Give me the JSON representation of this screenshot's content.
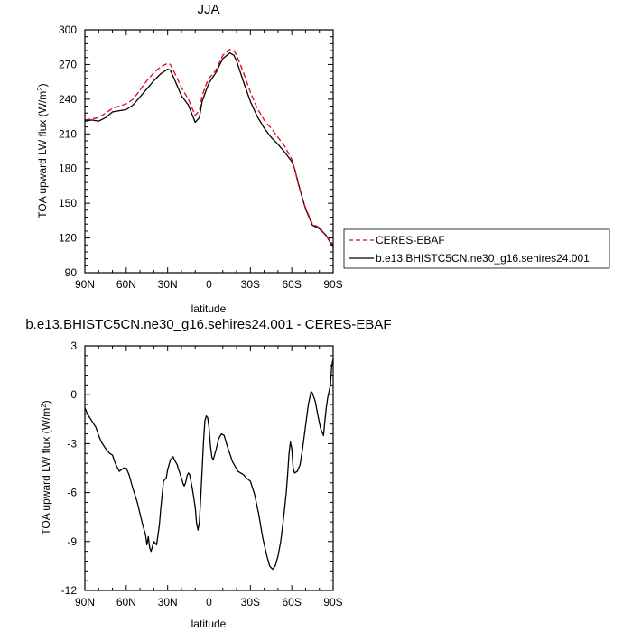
{
  "chart_data": [
    {
      "type": "line",
      "title": "JJA",
      "xlabel": "latitude",
      "ylabel": "TOA upward LW flux (W/m",
      "ylabel_sup": "2",
      "ylabel_end": ")",
      "xlim": [
        90,
        -90
      ],
      "ylim": [
        90,
        300
      ],
      "x_ticks": [
        90,
        60,
        30,
        0,
        -30,
        -60,
        -90
      ],
      "x_tick_labels": [
        "90N",
        "60N",
        "30N",
        "0",
        "30S",
        "60S",
        "90S"
      ],
      "y_ticks": [
        90,
        120,
        150,
        180,
        210,
        240,
        270,
        300
      ],
      "y_tick_labels": [
        "90",
        "120",
        "150",
        "180",
        "210",
        "240",
        "270",
        "300"
      ],
      "grid": false,
      "legend_position": "right",
      "series": [
        {
          "name": "CERES-EBAF",
          "color": "#e8001c",
          "dash": "dashed",
          "x": [
            90,
            85,
            80,
            75,
            70,
            65,
            60,
            55,
            50,
            45,
            40,
            35,
            30,
            28,
            25,
            20,
            15,
            10,
            7,
            5,
            2,
            0,
            -5,
            -10,
            -15,
            -18,
            -20,
            -25,
            -30,
            -35,
            -40,
            -45,
            -50,
            -55,
            -60,
            -62,
            -65,
            -70,
            -75,
            -80,
            -85,
            -90
          ],
          "values": [
            222,
            223,
            224,
            228,
            232,
            234,
            236,
            240,
            248,
            256,
            263,
            268,
            271,
            270,
            263,
            250,
            240,
            226,
            230,
            243,
            253,
            258,
            265,
            278,
            283,
            282,
            278,
            263,
            246,
            232,
            222,
            215,
            207,
            199,
            188,
            180,
            165,
            146,
            132,
            129,
            122,
            114
          ]
        },
        {
          "name": "b.e13.BHISTC5CN.ne30_g16.sehires24.001",
          "color": "#000000",
          "dash": "solid",
          "x": [
            90,
            85,
            80,
            75,
            70,
            65,
            60,
            55,
            50,
            45,
            40,
            35,
            30,
            28,
            25,
            20,
            15,
            10,
            7,
            5,
            2,
            0,
            -5,
            -10,
            -15,
            -18,
            -20,
            -25,
            -30,
            -35,
            -40,
            -45,
            -50,
            -55,
            -60,
            -62,
            -65,
            -70,
            -75,
            -80,
            -85,
            -90
          ],
          "values": [
            221,
            222,
            221,
            224,
            229,
            230,
            231,
            235,
            242,
            249,
            256,
            262,
            266,
            265,
            257,
            243,
            235,
            220,
            224,
            238,
            248,
            254,
            263,
            275,
            280,
            278,
            273,
            255,
            238,
            225,
            215,
            207,
            201,
            194,
            186,
            180,
            166,
            145,
            131,
            128,
            122,
            112
          ]
        }
      ]
    },
    {
      "type": "line",
      "title": "b.e13.BHISTC5CN.ne30_g16.sehires24.001 - CERES-EBAF",
      "xlabel": "latitude",
      "ylabel": "TOA upward LW flux (W/m",
      "ylabel_sup": "2",
      "ylabel_end": ")",
      "xlim": [
        90,
        -90
      ],
      "ylim": [
        -12,
        3
      ],
      "x_ticks": [
        90,
        60,
        30,
        0,
        -30,
        -60,
        -90
      ],
      "x_tick_labels": [
        "90N",
        "60N",
        "30N",
        "0",
        "30S",
        "60S",
        "90S"
      ],
      "y_ticks": [
        -12,
        -9,
        -6,
        -3,
        0,
        3
      ],
      "y_tick_labels": [
        "-12",
        "-9",
        "-6",
        "-3",
        "0",
        "3"
      ],
      "grid": false,
      "series": [
        {
          "color": "#000000",
          "dash": "solid",
          "x": [
            90,
            88,
            85,
            82,
            80,
            78,
            75,
            72,
            70,
            68,
            65,
            62,
            60,
            58,
            55,
            52,
            50,
            48,
            46,
            45,
            44,
            43,
            42,
            41,
            40,
            38,
            36,
            35,
            33,
            31,
            30,
            28,
            26,
            25,
            23,
            22,
            20,
            19,
            18,
            17,
            16,
            15,
            14,
            12,
            10,
            9,
            8,
            7,
            6,
            5,
            4,
            3,
            2,
            1,
            0,
            -1,
            -2,
            -3,
            -4,
            -5,
            -7,
            -9,
            -11,
            -13,
            -15,
            -17,
            -19,
            -21,
            -23,
            -25,
            -27,
            -30,
            -33,
            -36,
            -39,
            -42,
            -44,
            -46,
            -48,
            -50,
            -52,
            -54,
            -56,
            -57,
            -58,
            -59,
            -60,
            -61,
            -62,
            -64,
            -66,
            -68,
            -70,
            -72,
            -74,
            -75,
            -77,
            -79,
            -81,
            -83,
            -84,
            -85,
            -86,
            -87,
            -88,
            -89,
            -90
          ],
          "values": [
            -0.8,
            -1.2,
            -1.6,
            -2.0,
            -2.5,
            -2.9,
            -3.3,
            -3.6,
            -3.7,
            -4.2,
            -4.7,
            -4.5,
            -4.5,
            -4.9,
            -5.8,
            -6.6,
            -7.3,
            -8.0,
            -8.6,
            -9.2,
            -8.7,
            -9.4,
            -9.6,
            -9.3,
            -9.0,
            -9.2,
            -8.0,
            -7.0,
            -5.3,
            -5.1,
            -4.6,
            -4.0,
            -3.8,
            -4.0,
            -4.3,
            -4.6,
            -5.1,
            -5.4,
            -5.6,
            -5.4,
            -5.0,
            -4.8,
            -4.9,
            -5.8,
            -6.9,
            -7.9,
            -8.3,
            -7.8,
            -6.3,
            -4.6,
            -2.9,
            -1.6,
            -1.3,
            -1.4,
            -2.0,
            -3.1,
            -3.8,
            -4.0,
            -3.7,
            -3.4,
            -2.7,
            -2.4,
            -2.5,
            -3.1,
            -3.6,
            -4.1,
            -4.4,
            -4.7,
            -4.8,
            -4.9,
            -5.1,
            -5.3,
            -6.1,
            -7.3,
            -8.8,
            -9.9,
            -10.5,
            -10.7,
            -10.5,
            -9.9,
            -9.0,
            -7.6,
            -6.0,
            -4.9,
            -3.6,
            -2.9,
            -3.3,
            -4.5,
            -4.8,
            -4.7,
            -4.3,
            -3.2,
            -1.9,
            -0.6,
            0.2,
            0.1,
            -0.4,
            -1.3,
            -2.1,
            -2.5,
            -1.6,
            -0.8,
            -0.2,
            0.2,
            0.6,
            1.8,
            2.2
          ]
        }
      ]
    }
  ]
}
